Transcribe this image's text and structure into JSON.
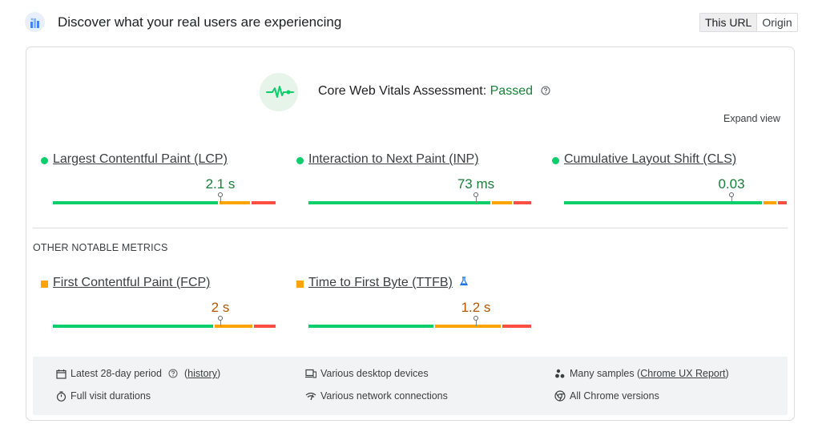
{
  "header": {
    "title": "Discover what your real users are experiencing",
    "tabs": [
      "This URL",
      "Origin"
    ],
    "active_tab": "This URL"
  },
  "assessment": {
    "label": "Core Web Vitals Assessment:",
    "status": "Passed",
    "expand_label": "Expand view"
  },
  "core_metrics": [
    {
      "name": "Largest Contentful Paint (LCP)",
      "value": "2.1 s",
      "rating": "good",
      "distribution": [
        0.75,
        0.14,
        0.11
      ],
      "p75": 0.75
    },
    {
      "name": "Interaction to Next Paint (INP)",
      "value": "73 ms",
      "rating": "good",
      "distribution": [
        0.83,
        0.09,
        0.08
      ],
      "p75": 0.75
    },
    {
      "name": "Cumulative Layout Shift (CLS)",
      "value": "0.03",
      "rating": "good",
      "distribution": [
        0.9,
        0.06,
        0.04
      ],
      "p75": 0.75
    }
  ],
  "other_section_label": "OTHER NOTABLE METRICS",
  "other_metrics": [
    {
      "name": "First Contentful Paint (FCP)",
      "value": "2 s",
      "rating": "ni",
      "distribution": [
        0.68,
        0.16,
        0.09
      ],
      "p75": 0.75
    },
    {
      "name": "Time to First Byte (TTFB)",
      "value": "1.2 s",
      "rating": "ni",
      "distribution": [
        0.57,
        0.3,
        0.13
      ],
      "p75": 0.75,
      "experimental": true
    }
  ],
  "info": {
    "period": "Latest 28-day period",
    "history_link": "history",
    "devices": "Various desktop devices",
    "samples_prefix": "Many samples (",
    "samples_link": "Chrome UX Report",
    "samples_suffix": ")",
    "durations": "Full visit durations",
    "network": "Various network connections",
    "versions": "All Chrome versions"
  },
  "colors": {
    "good": "#0cce6b",
    "needs_improvement": "#ffa400",
    "poor": "#ff4e42",
    "good_text": "#188038",
    "ni_text": "#b55600"
  },
  "icons": {
    "logo": "crux-logo-icon",
    "assessment": "pulse-icon",
    "help": "help-circle-icon",
    "lab": "flask-icon",
    "calendar": "calendar-icon",
    "devices": "devices-icon",
    "samples": "people-icon",
    "timer": "timer-icon",
    "network": "wifi-icon",
    "chrome": "chrome-icon"
  }
}
